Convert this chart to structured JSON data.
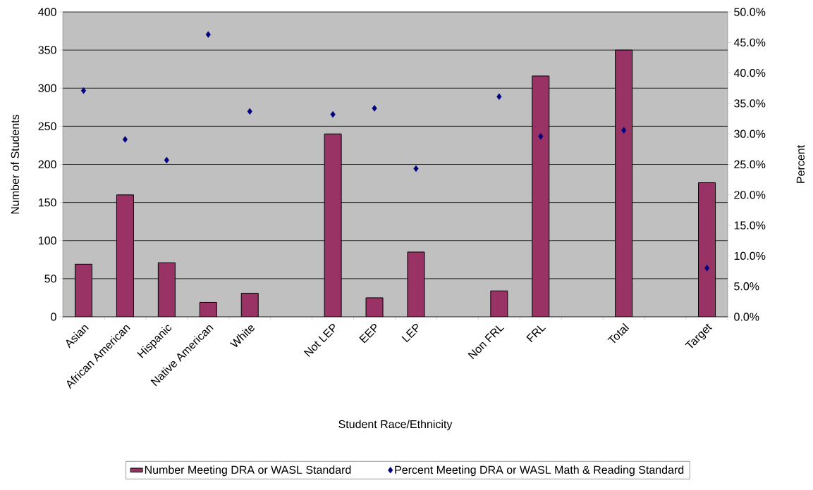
{
  "chart_data": {
    "type": "bar",
    "xlabel": "Student Race/Ethnicity",
    "ylabel": "Number of Students",
    "y2label": "Percent",
    "categories": [
      "Asian",
      "African American",
      "Hispanic",
      "Native American",
      "White",
      null,
      "Not LEP",
      "EEP",
      "LEP",
      null,
      "Non FRL",
      "FRL",
      null,
      "Total",
      null,
      "Target"
    ],
    "series": [
      {
        "name": "Number Meeting DRA or WASL Standard",
        "color": "#993366",
        "values": [
          69,
          160,
          71,
          19,
          31,
          null,
          240,
          25,
          85,
          null,
          34,
          316,
          null,
          350,
          null,
          176
        ]
      },
      {
        "name": "Percent Meeting DRA or WASL Math & Reading Standard",
        "type": "scatter",
        "axis": "y2",
        "marker": "diamond",
        "color": "#000080",
        "values": [
          37.1,
          29.1,
          25.7,
          46.3,
          33.7,
          null,
          33.2,
          34.2,
          24.3,
          null,
          36.1,
          29.6,
          null,
          30.6,
          null,
          8.0
        ]
      }
    ],
    "ylim": [
      0,
      400
    ],
    "yticks": [
      0,
      50,
      100,
      150,
      200,
      250,
      300,
      350,
      400
    ],
    "y2lim": [
      0,
      50
    ],
    "y2ticks": [
      {
        "value": 0,
        "label": "0.0%"
      },
      {
        "value": 5,
        "label": "5.0%"
      },
      {
        "value": 10,
        "label": "10.0%"
      },
      {
        "value": 15,
        "label": "15.0%"
      },
      {
        "value": 20,
        "label": "20.0%"
      },
      {
        "value": 25,
        "label": "25.0%"
      },
      {
        "value": 30,
        "label": "30.0%"
      },
      {
        "value": 35,
        "label": "35.0%"
      },
      {
        "value": 40,
        "label": "40.0%"
      },
      {
        "value": 45,
        "label": "45.0%"
      },
      {
        "value": 50,
        "label": "50.0%"
      }
    ],
    "grid": "y",
    "legend": "bottom"
  }
}
